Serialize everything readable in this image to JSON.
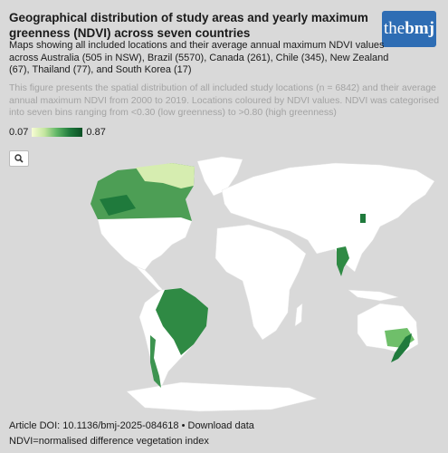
{
  "header": {
    "title": "Geographical distribution of study areas and yearly maximum greenness (NDVI) across seven countries",
    "subtitle": "Maps showing all included locations and their average annual maximum NDVI values across Australia (505 in NSW), Brazil (5570), Canada (261), Chile (345), New Zealand (67), Thailand (77), and South Korea (17)",
    "description": "This figure presents the spatial distribution of all included study locations (n = 6842) and their average annual maximum NDVI from 2000 to 2019. Locations coloured by NDVI values. NDVI was categorised into seven bins ranging from <0.30 (low greenness) to >0.80 (high greenness)"
  },
  "logo": {
    "prefix": "the",
    "name": "bmj"
  },
  "legend": {
    "min": "0.07",
    "max": "0.87"
  },
  "footer": {
    "doi": "Article DOI: 10.1136/bmj-2025-084618",
    "separator": "•",
    "download": "Download data",
    "note": "NDVI=normalised difference vegetation index"
  }
}
